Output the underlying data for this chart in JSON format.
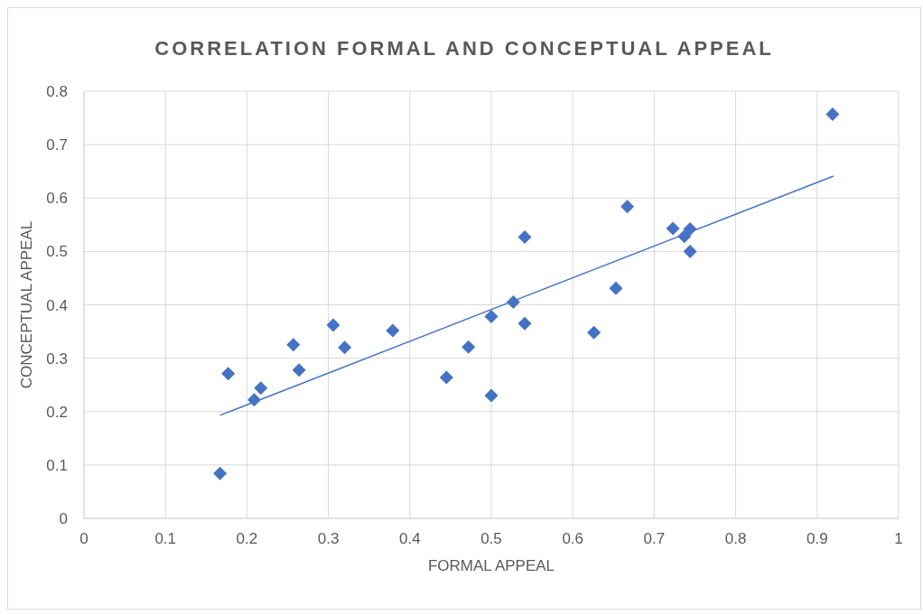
{
  "chart_data": {
    "type": "scatter",
    "title": "CORRELATION FORMAL AND CONCEPTUAL APPEAL",
    "xlabel": "FORMAL APPEAL",
    "ylabel": "CONCEPTUAL APPEAL",
    "xlim": [
      0,
      1
    ],
    "xticks": [
      0,
      0.1,
      0.2,
      0.3,
      0.4,
      0.5,
      0.6,
      0.7,
      0.8,
      0.9,
      1
    ],
    "ylim": [
      0,
      0.8
    ],
    "yticks": [
      0,
      0.1,
      0.2,
      0.3,
      0.4,
      0.5,
      0.6,
      0.7,
      0.8
    ],
    "grid": true,
    "marker": "diamond",
    "series": [
      {
        "color": "#4472c4",
        "x": [
          0.167,
          0.177,
          0.209,
          0.217,
          0.257,
          0.264,
          0.306,
          0.32,
          0.379,
          0.445,
          0.472,
          0.5,
          0.5,
          0.527,
          0.541,
          0.541,
          0.626,
          0.653,
          0.667,
          0.723,
          0.737,
          0.744,
          0.744,
          0.919
        ],
        "values": [
          0.084,
          0.271,
          0.222,
          0.244,
          0.325,
          0.278,
          0.362,
          0.32,
          0.352,
          0.264,
          0.321,
          0.23,
          0.378,
          0.405,
          0.365,
          0.527,
          0.348,
          0.431,
          0.584,
          0.543,
          0.528,
          0.542,
          0.5,
          0.757
        ]
      },
      {
        "type": "line",
        "marker": "none",
        "color": "#4472c4",
        "x": [
          0.167,
          0.92
        ],
        "values": [
          0.193,
          0.641
        ]
      }
    ]
  }
}
